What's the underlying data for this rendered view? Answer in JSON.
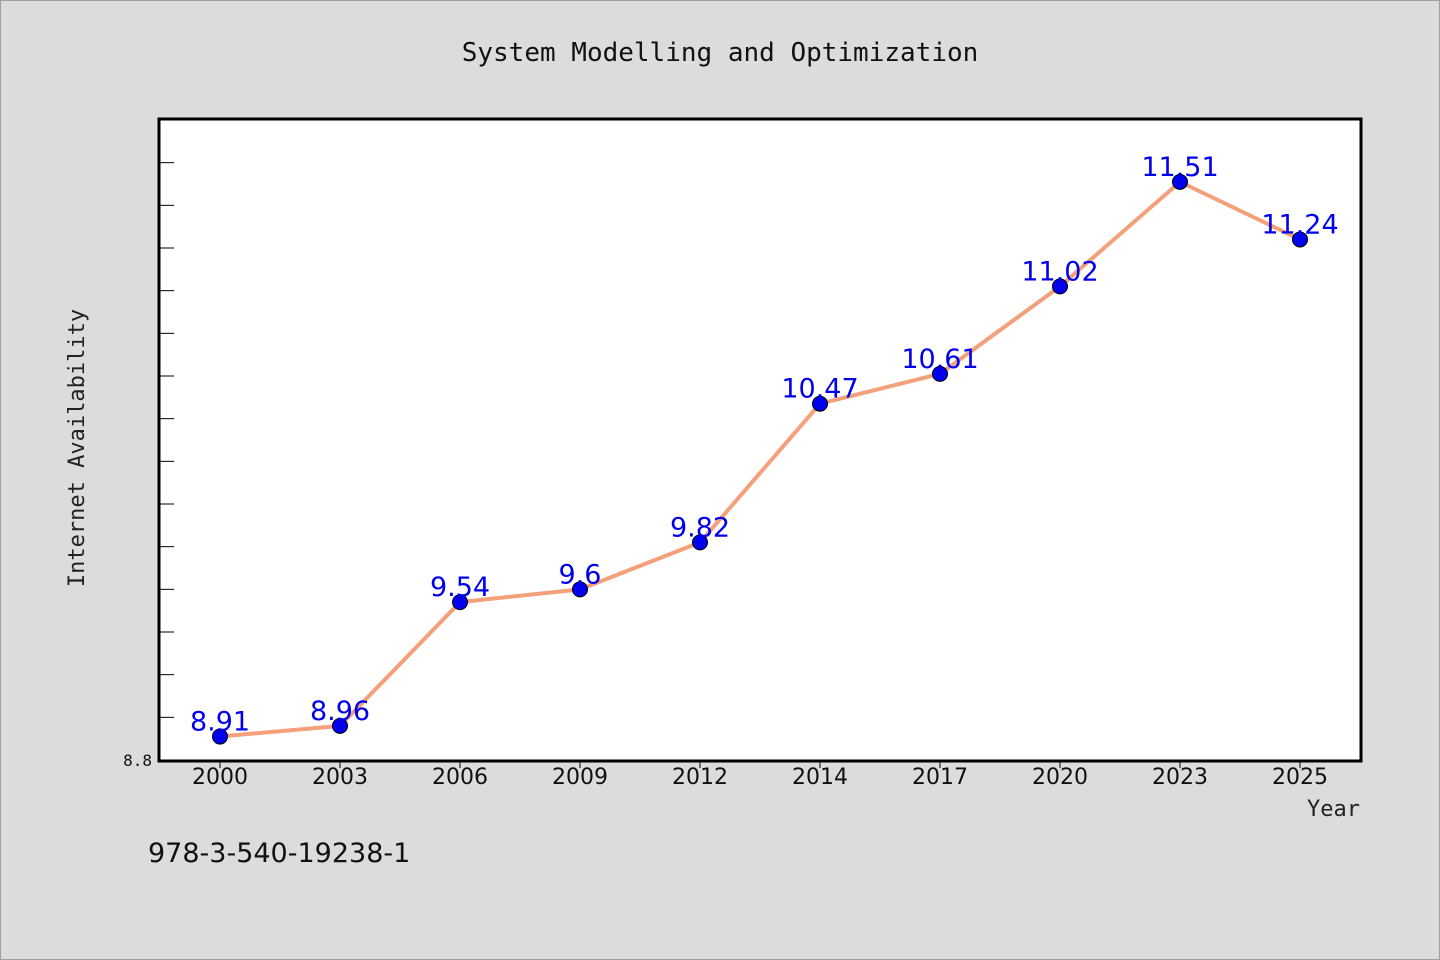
{
  "chart_data": {
    "type": "line",
    "title": "System Modelling and Optimization",
    "xlabel": "Year",
    "ylabel": "Internet Availability",
    "categories": [
      "2000",
      "2003",
      "2006",
      "2009",
      "2012",
      "2014",
      "2017",
      "2020",
      "2023",
      "2025"
    ],
    "series": [
      {
        "values": [
          8.91,
          8.96,
          9.54,
          9.6,
          9.82,
          10.47,
          10.61,
          11.02,
          11.51,
          11.24
        ]
      }
    ],
    "data_labels": [
      "8.91",
      "8.96",
      "9.54",
      "9.6",
      "9.82",
      "10.47",
      "10.61",
      "11.02",
      "11.51",
      "11.24"
    ],
    "y_tick_labels": [
      "8.8"
    ],
    "ylim": [
      8.8,
      11.8
    ],
    "grid": false,
    "line_color": "#f4a07a",
    "marker_color": "#0000ee",
    "label_color": "#0000ee"
  },
  "footnote": "978-3-540-19238-1"
}
